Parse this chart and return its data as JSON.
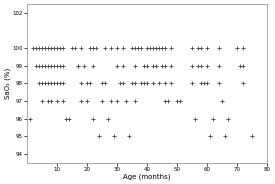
{
  "xlabel": "Age (months)",
  "ylabel": "SaO₂ (%)",
  "xlim": [
    0,
    80
  ],
  "ylim": [
    93.5,
    102.5
  ],
  "xticks": [
    10,
    20,
    30,
    40,
    50,
    60,
    70,
    80
  ],
  "yticks": [
    94,
    95,
    96,
    97,
    98,
    99,
    100,
    102
  ],
  "marker": "+",
  "markersize": 3.5,
  "marker_color": "#444444",
  "background_color": "#ffffff",
  "points": [
    [
      1,
      96
    ],
    [
      2,
      100
    ],
    [
      3,
      100
    ],
    [
      3,
      99
    ],
    [
      4,
      100
    ],
    [
      4,
      99
    ],
    [
      4,
      98
    ],
    [
      5,
      100
    ],
    [
      5,
      99
    ],
    [
      5,
      98
    ],
    [
      5,
      97
    ],
    [
      6,
      100
    ],
    [
      6,
      99
    ],
    [
      6,
      98
    ],
    [
      7,
      100
    ],
    [
      7,
      99
    ],
    [
      7,
      98
    ],
    [
      7,
      97
    ],
    [
      8,
      100
    ],
    [
      8,
      99
    ],
    [
      8,
      98
    ],
    [
      8,
      97
    ],
    [
      9,
      100
    ],
    [
      9,
      99
    ],
    [
      9,
      98
    ],
    [
      10,
      100
    ],
    [
      10,
      99
    ],
    [
      10,
      98
    ],
    [
      10,
      97
    ],
    [
      11,
      100
    ],
    [
      11,
      99
    ],
    [
      11,
      98
    ],
    [
      12,
      100
    ],
    [
      12,
      99
    ],
    [
      12,
      98
    ],
    [
      12,
      97
    ],
    [
      13,
      96
    ],
    [
      14,
      96
    ],
    [
      15,
      100
    ],
    [
      16,
      100
    ],
    [
      17,
      99
    ],
    [
      17,
      99
    ],
    [
      18,
      100
    ],
    [
      18,
      98
    ],
    [
      18,
      97
    ],
    [
      19,
      99
    ],
    [
      20,
      98
    ],
    [
      20,
      97
    ],
    [
      21,
      100
    ],
    [
      21,
      98
    ],
    [
      22,
      100
    ],
    [
      22,
      99
    ],
    [
      22,
      96
    ],
    [
      23,
      100
    ],
    [
      24,
      95
    ],
    [
      25,
      98
    ],
    [
      25,
      97
    ],
    [
      26,
      100
    ],
    [
      26,
      98
    ],
    [
      27,
      96
    ],
    [
      28,
      100
    ],
    [
      28,
      97
    ],
    [
      29,
      95
    ],
    [
      30,
      100
    ],
    [
      30,
      99
    ],
    [
      30,
      97
    ],
    [
      31,
      98
    ],
    [
      32,
      100
    ],
    [
      32,
      99
    ],
    [
      32,
      98
    ],
    [
      33,
      97
    ],
    [
      34,
      95
    ],
    [
      35,
      100
    ],
    [
      35,
      98
    ],
    [
      36,
      100
    ],
    [
      36,
      99
    ],
    [
      36,
      98
    ],
    [
      36,
      97
    ],
    [
      37,
      100
    ],
    [
      38,
      100
    ],
    [
      38,
      98
    ],
    [
      39,
      99
    ],
    [
      39,
      98
    ],
    [
      40,
      100
    ],
    [
      40,
      99
    ],
    [
      40,
      98
    ],
    [
      41,
      100
    ],
    [
      42,
      100
    ],
    [
      42,
      99
    ],
    [
      42,
      98
    ],
    [
      43,
      100
    ],
    [
      43,
      99
    ],
    [
      44,
      100
    ],
    [
      44,
      98
    ],
    [
      45,
      100
    ],
    [
      45,
      99
    ],
    [
      46,
      100
    ],
    [
      46,
      99
    ],
    [
      46,
      98
    ],
    [
      46,
      97
    ],
    [
      47,
      97
    ],
    [
      48,
      100
    ],
    [
      48,
      99
    ],
    [
      48,
      98
    ],
    [
      50,
      97
    ],
    [
      51,
      97
    ],
    [
      55,
      100
    ],
    [
      55,
      99
    ],
    [
      55,
      98
    ],
    [
      56,
      96
    ],
    [
      57,
      100
    ],
    [
      57,
      99
    ],
    [
      58,
      100
    ],
    [
      58,
      99
    ],
    [
      58,
      98
    ],
    [
      59,
      98
    ],
    [
      60,
      100
    ],
    [
      60,
      99
    ],
    [
      60,
      98
    ],
    [
      61,
      95
    ],
    [
      62,
      96
    ],
    [
      64,
      100
    ],
    [
      64,
      99
    ],
    [
      64,
      98
    ],
    [
      65,
      97
    ],
    [
      66,
      95
    ],
    [
      67,
      96
    ],
    [
      70,
      100
    ],
    [
      71,
      99
    ],
    [
      72,
      100
    ],
    [
      72,
      99
    ],
    [
      72,
      98
    ],
    [
      75,
      95
    ]
  ]
}
